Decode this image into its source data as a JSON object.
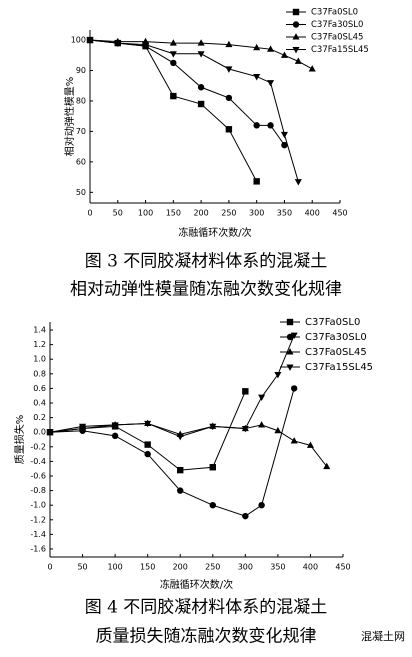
{
  "chart_data": [
    {
      "type": "line",
      "caption": [
        "图 3  不同胶凝材料体系的混凝土",
        "相对动弹性模量随冻融次数变化规律"
      ],
      "x_label": "冻融循环次数/次",
      "y_label": "相对动弹性模量%",
      "xlim": [
        0,
        450
      ],
      "xticks": [
        0,
        50,
        100,
        150,
        200,
        250,
        300,
        350,
        400,
        450
      ],
      "ylim": [
        46.5,
        103.3
      ],
      "yticks": [
        50,
        60,
        70,
        80,
        90,
        100
      ],
      "legend": "upper right",
      "series": [
        {
          "name": "C37Fa0SL0",
          "color": "#000000",
          "marker": "square",
          "x": [
            0,
            50,
            100,
            150,
            200,
            250,
            300
          ],
          "values": [
            100,
            99,
            98,
            81.6,
            79,
            70.7,
            53.6
          ]
        },
        {
          "name": "C37Fa30SL0",
          "color": "#000000",
          "marker": "circle",
          "x": [
            0,
            50,
            100,
            150,
            200,
            250,
            300,
            325,
            350
          ],
          "values": [
            100,
            99,
            98,
            92.5,
            84.5,
            81,
            72,
            72,
            65.5
          ]
        },
        {
          "name": "C37Fa0SL45",
          "color": "#000000",
          "marker": "triangle-up",
          "x": [
            0,
            50,
            100,
            150,
            200,
            250,
            300,
            325,
            350,
            375,
            400
          ],
          "values": [
            100,
            99.5,
            99.5,
            99,
            99,
            98.5,
            97.5,
            97,
            95,
            93,
            90.5
          ]
        },
        {
          "name": "C37Fa15SL45",
          "color": "#000000",
          "marker": "triangle-down",
          "x": [
            0,
            50,
            100,
            150,
            200,
            250,
            300,
            325,
            350,
            375
          ],
          "values": [
            100,
            99,
            98.5,
            95.5,
            95.5,
            90.5,
            88,
            86,
            69,
            53.5
          ]
        }
      ]
    },
    {
      "type": "line",
      "caption": [
        "图 4  不同胶凝材料体系的混凝土",
        "质量损失随冻融次数变化规律"
      ],
      "x_label": "冻融循环次数/次",
      "y_label": "质量损失%",
      "xlim": [
        0,
        450
      ],
      "xticks": [
        0,
        50,
        100,
        150,
        200,
        250,
        300,
        350,
        400,
        450
      ],
      "ylim": [
        -1.71,
        1.51
      ],
      "yticks": [
        1.4,
        1.2,
        {
          "value": 1,
          "label": "1.0"
        },
        0.8,
        0.6,
        0.4,
        0.2,
        {
          "value": 0,
          "label": "0.0"
        },
        -0.2,
        -0.4,
        -0.6,
        -0.8,
        {
          "value": -1,
          "label": "-1.0"
        },
        -1.2,
        -1.4,
        -1.6
      ],
      "legend": "upper right",
      "series": [
        {
          "name": "C37Fa0SL0",
          "color": "#000000",
          "marker": "square",
          "x": [
            0,
            50,
            100,
            150,
            200,
            250,
            300
          ],
          "values": [
            0,
            0.05,
            0.08,
            -0.17,
            -0.52,
            -0.48,
            0.56
          ]
        },
        {
          "name": "C37Fa30SL0",
          "color": "#000000",
          "marker": "circle",
          "x": [
            0,
            50,
            100,
            150,
            200,
            250,
            300,
            325,
            375
          ],
          "values": [
            0,
            0.02,
            -0.05,
            -0.3,
            -0.8,
            -1,
            -1.15,
            -1,
            0.6
          ]
        },
        {
          "name": "C37Fa0SL45",
          "color": "#000000",
          "marker": "triangle-up",
          "x": [
            0,
            50,
            100,
            150,
            200,
            250,
            300,
            325,
            350,
            375,
            400,
            425
          ],
          "values": [
            0,
            0.05,
            0.1,
            0.12,
            -0.03,
            0.08,
            0.05,
            0.1,
            0.02,
            -0.12,
            -0.18,
            -0.47
          ]
        },
        {
          "name": "C37Fa15SL45",
          "color": "#000000",
          "marker": "triangle-down",
          "x": [
            0,
            50,
            100,
            150,
            200,
            250,
            300,
            325,
            350,
            375
          ],
          "values": [
            0,
            0.08,
            0.1,
            0.12,
            -0.06,
            0.08,
            0.05,
            0.48,
            0.79,
            1.33
          ]
        }
      ]
    }
  ],
  "watermark": "混凝土网"
}
